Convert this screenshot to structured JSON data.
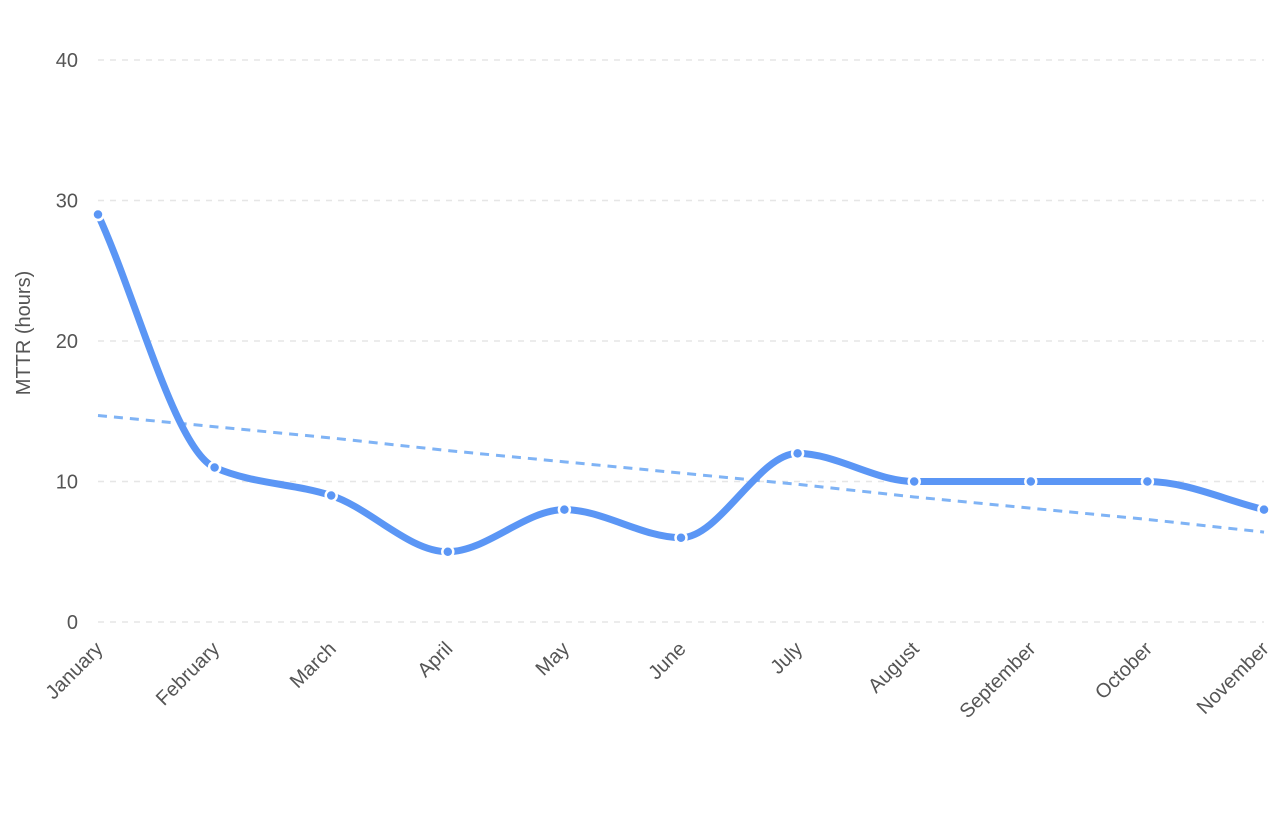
{
  "chart_data": {
    "type": "line",
    "title": "",
    "xlabel": "",
    "ylabel": "MTTR (hours)",
    "categories": [
      "January",
      "February",
      "March",
      "April",
      "May",
      "June",
      "July",
      "August",
      "September",
      "October",
      "November"
    ],
    "series": [
      {
        "values": [
          29,
          11,
          9,
          5,
          8,
          6,
          12,
          10,
          10,
          10,
          8
        ],
        "color": "#5b96f5",
        "style": "smooth-line-with-markers"
      },
      {
        "style": "dashed-trend-line",
        "color": "#7fb3f5",
        "values": [
          14.7,
          13.9,
          13.1,
          12.2,
          11.4,
          10.6,
          9.8,
          8.9,
          8.1,
          7.3,
          6.4
        ]
      }
    ],
    "ylim": [
      0,
      40
    ],
    "yticks": [
      0,
      10,
      20,
      30,
      40
    ],
    "grid": "horizontal-dashed",
    "legend": "none"
  }
}
